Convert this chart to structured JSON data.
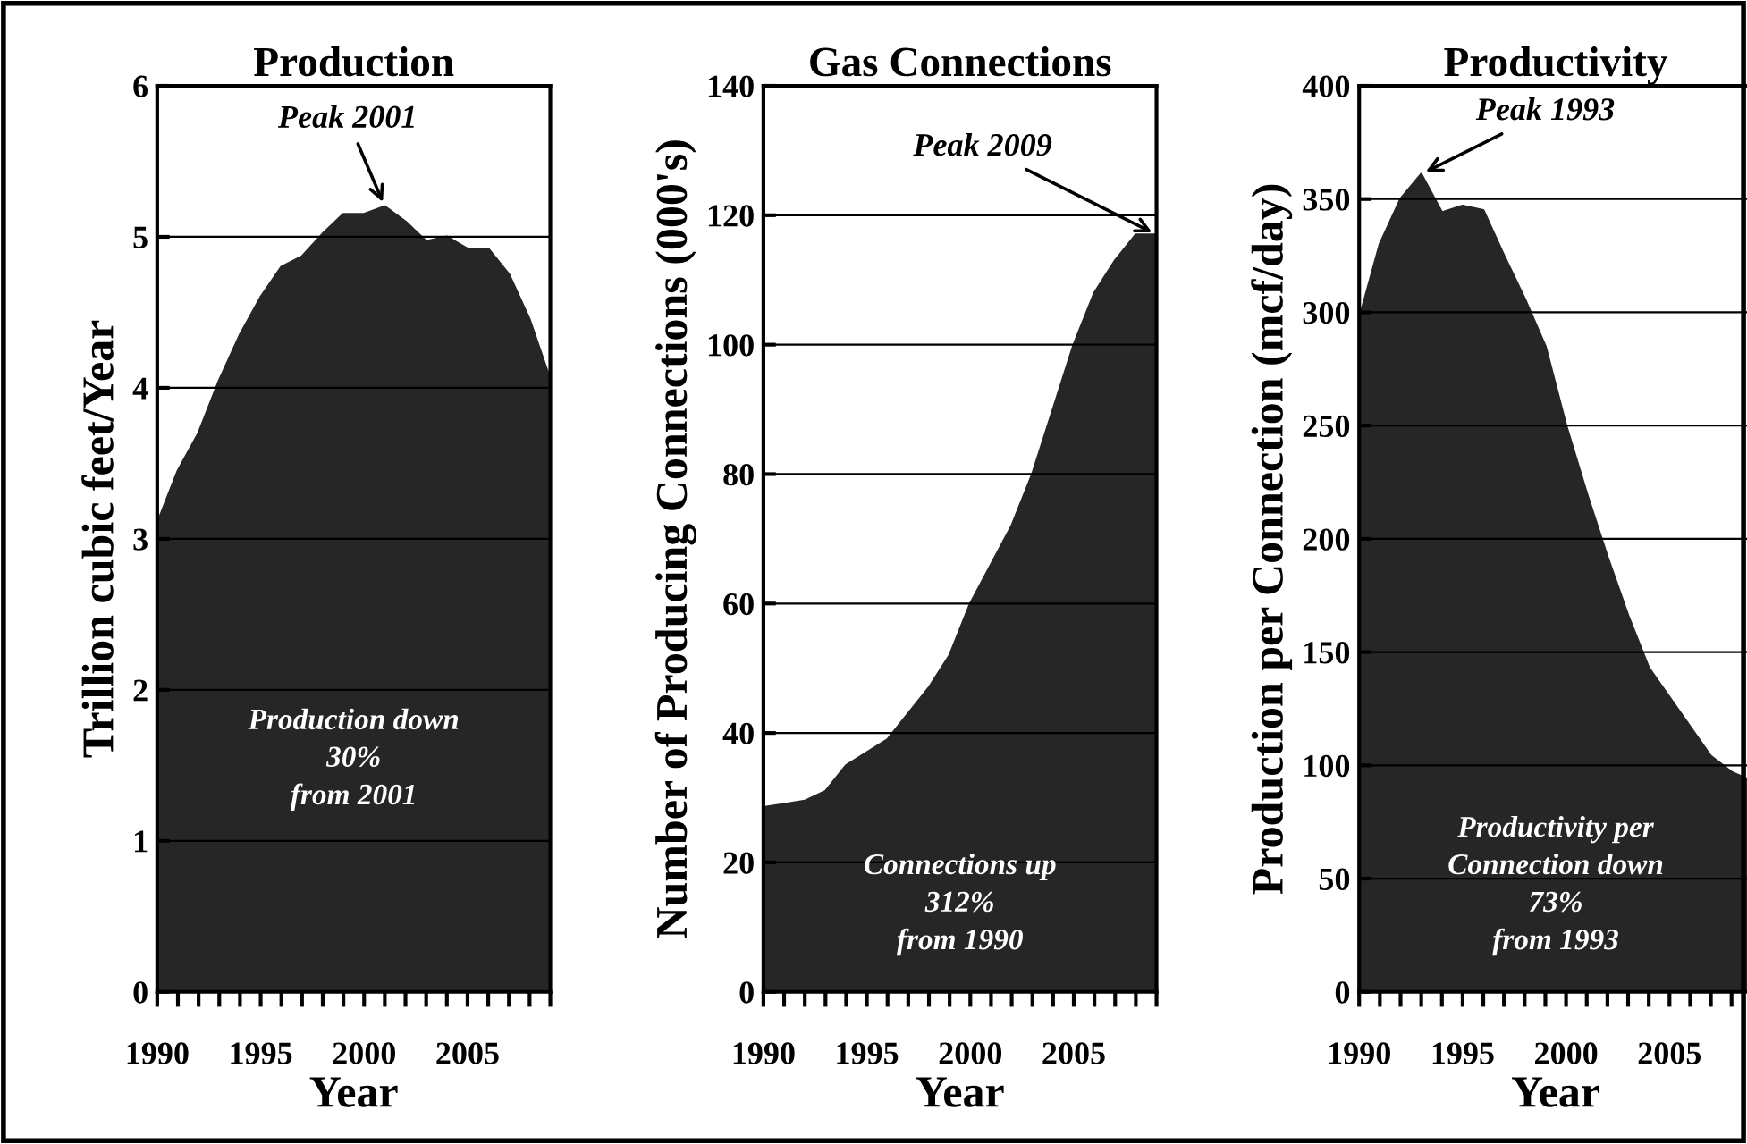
{
  "chart_data": [
    {
      "type": "area",
      "title": "Production",
      "xlabel": "Year",
      "ylabel": "Trillion cubic feet/Year",
      "x": [
        1990,
        1991,
        1992,
        1993,
        1994,
        1995,
        1996,
        1997,
        1998,
        1999,
        2000,
        2001,
        2002,
        2003,
        2004,
        2005,
        2006,
        2007,
        2008,
        2009
      ],
      "series": [
        {
          "color": "#262626",
          "values": [
            3.1,
            3.45,
            3.7,
            4.05,
            4.35,
            4.6,
            4.8,
            4.87,
            5.02,
            5.15,
            5.15,
            5.2,
            5.1,
            4.97,
            5.0,
            4.92,
            4.92,
            4.75,
            4.45,
            4.05
          ]
        }
      ],
      "xlim": [
        1990,
        2009
      ],
      "ylim": [
        0,
        6
      ],
      "yticks": [
        0,
        1,
        2,
        3,
        4,
        5,
        6
      ],
      "xticks": [
        1990,
        {
          "value": 1991,
          "label": null
        },
        {
          "value": 1992,
          "label": null
        },
        {
          "value": 1993,
          "label": null
        },
        {
          "value": 1994,
          "label": null
        },
        1995,
        {
          "value": 1996,
          "label": null
        },
        {
          "value": 1997,
          "label": null
        },
        {
          "value": 1998,
          "label": null
        },
        {
          "value": 1999,
          "label": null
        },
        2000,
        {
          "value": 2001,
          "label": null
        },
        {
          "value": 2002,
          "label": null
        },
        {
          "value": 2003,
          "label": null
        },
        {
          "value": 2004,
          "label": null
        },
        2005,
        {
          "value": 2006,
          "label": null
        },
        {
          "value": 2007,
          "label": null
        },
        {
          "value": 2008,
          "label": null
        },
        {
          "value": 2009,
          "label": null
        }
      ],
      "grid": "y",
      "annotations": [
        {
          "text": "Peak 2001",
          "x": 2001,
          "y": 5.2
        },
        "Production down\n30%\nfrom 2001"
      ]
    },
    {
      "type": "area",
      "title": "Gas Connections",
      "xlabel": "Year",
      "ylabel": "Number of Producing Connections (000's)",
      "x": [
        1990,
        1991,
        1992,
        1993,
        1994,
        1995,
        1996,
        1997,
        1998,
        1999,
        2000,
        2001,
        2002,
        2003,
        2004,
        2005,
        2006,
        2007,
        2008,
        2009
      ],
      "series": [
        {
          "color": "#262626",
          "values": [
            28.5,
            29,
            29.5,
            31,
            35,
            37,
            39,
            43,
            47,
            52,
            60,
            66,
            72,
            80,
            90,
            100,
            108,
            113,
            117,
            117
          ]
        }
      ],
      "xlim": [
        1990,
        2009
      ],
      "ylim": [
        0,
        140
      ],
      "yticks": [
        0,
        20,
        40,
        60,
        80,
        100,
        120,
        140
      ],
      "xticks": [
        1990,
        {
          "value": 1991,
          "label": null
        },
        {
          "value": 1992,
          "label": null
        },
        {
          "value": 1993,
          "label": null
        },
        {
          "value": 1994,
          "label": null
        },
        1995,
        {
          "value": 1996,
          "label": null
        },
        {
          "value": 1997,
          "label": null
        },
        {
          "value": 1998,
          "label": null
        },
        {
          "value": 1999,
          "label": null
        },
        2000,
        {
          "value": 2001,
          "label": null
        },
        {
          "value": 2002,
          "label": null
        },
        {
          "value": 2003,
          "label": null
        },
        {
          "value": 2004,
          "label": null
        },
        2005,
        {
          "value": 2006,
          "label": null
        },
        {
          "value": 2007,
          "label": null
        },
        {
          "value": 2008,
          "label": null
        },
        {
          "value": 2009,
          "label": null
        }
      ],
      "grid": "y",
      "annotations": [
        {
          "text": "Peak 2009",
          "x": 2009,
          "y": 117
        },
        "Connections up\n312%\nfrom 1990"
      ]
    },
    {
      "type": "area",
      "title": "Productivity",
      "xlabel": "Year",
      "ylabel": "Production per Connection (mcf/day)",
      "x": [
        1990,
        1991,
        1992,
        1993,
        1994,
        1995,
        1996,
        1997,
        1998,
        1999,
        2000,
        2001,
        2002,
        2003,
        2004,
        2005,
        2006,
        2007,
        2008,
        2009
      ],
      "series": [
        {
          "color": "#262626",
          "values": [
            297,
            330,
            350,
            361,
            344,
            347,
            345,
            325,
            306,
            285,
            250,
            220,
            192,
            166,
            143,
            130,
            117,
            104,
            97,
            93
          ]
        }
      ],
      "xlim": [
        1990,
        2009
      ],
      "ylim": [
        0,
        400
      ],
      "yticks": [
        0,
        50,
        100,
        150,
        200,
        250,
        300,
        350,
        400
      ],
      "xticks": [
        1990,
        {
          "value": 1991,
          "label": null
        },
        {
          "value": 1992,
          "label": null
        },
        {
          "value": 1993,
          "label": null
        },
        {
          "value": 1994,
          "label": null
        },
        1995,
        {
          "value": 1996,
          "label": null
        },
        {
          "value": 1997,
          "label": null
        },
        {
          "value": 1998,
          "label": null
        },
        {
          "value": 1999,
          "label": null
        },
        2000,
        {
          "value": 2001,
          "label": null
        },
        {
          "value": 2002,
          "label": null
        },
        {
          "value": 2003,
          "label": null
        },
        {
          "value": 2004,
          "label": null
        },
        2005,
        {
          "value": 2006,
          "label": null
        },
        {
          "value": 2007,
          "label": null
        },
        {
          "value": 2008,
          "label": null
        },
        {
          "value": 2009,
          "label": null
        }
      ],
      "grid": "y",
      "annotations": [
        {
          "text": "Peak 1993",
          "x": 1993,
          "y": 361
        },
        "Productivity per\nConnection down\n73%\nfrom 1993"
      ]
    }
  ]
}
